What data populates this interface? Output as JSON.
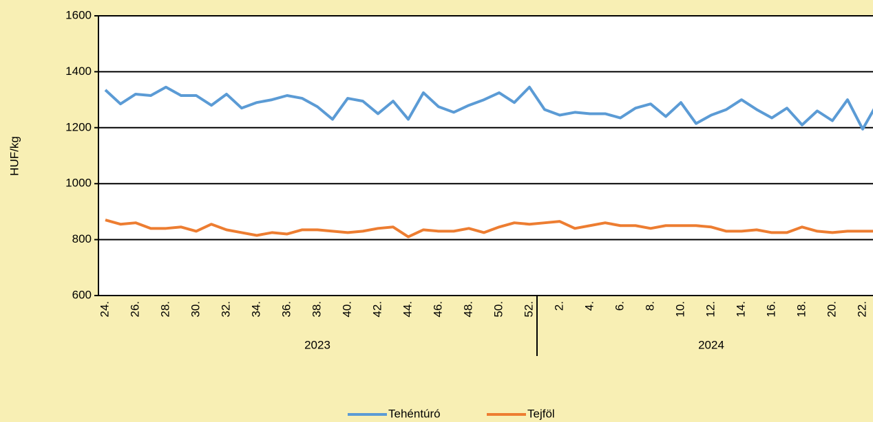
{
  "chart_data": {
    "type": "line",
    "y_label": "HUF/kg",
    "category_groups": [
      {
        "name": "2023",
        "categories": [
          "24.",
          null,
          "26.",
          null,
          "28.",
          null,
          "30.",
          null,
          "32.",
          null,
          "34.",
          null,
          "36.",
          null,
          "38.",
          null,
          "40.",
          null,
          "42.",
          null,
          "44.",
          null,
          "46.",
          null,
          "48.",
          null,
          "50.",
          null,
          "52."
        ]
      },
      {
        "name": "2024",
        "categories": [
          null,
          "2.",
          null,
          "4.",
          null,
          "6.",
          null,
          "8.",
          null,
          "10.",
          null,
          "12.",
          null,
          "14.",
          null,
          "16.",
          null,
          "18.",
          null,
          "20.",
          null,
          "22.",
          null
        ]
      }
    ],
    "series": [
      {
        "name": "Tehéntúró",
        "color": "#5b9bd5",
        "values": [
          1335,
          1285,
          1320,
          1315,
          1345,
          1315,
          1315,
          1280,
          1320,
          1270,
          1290,
          1300,
          1315,
          1305,
          1275,
          1230,
          1305,
          1295,
          1250,
          1295,
          1230,
          1325,
          1275,
          1255,
          1280,
          1300,
          1325,
          1290,
          1345,
          1265,
          1245,
          1255,
          1250,
          1250,
          1235,
          1270,
          1285,
          1240,
          1290,
          1215,
          1245,
          1265,
          1300,
          1265,
          1235,
          1270,
          1210,
          1260,
          1225,
          1300,
          1195,
          1290
        ]
      },
      {
        "name": "Tejföl",
        "color": "#ed7d31",
        "values": [
          870,
          855,
          860,
          840,
          840,
          845,
          830,
          855,
          835,
          825,
          815,
          825,
          820,
          835,
          835,
          830,
          825,
          830,
          840,
          845,
          810,
          835,
          830,
          830,
          840,
          825,
          845,
          860,
          855,
          860,
          865,
          840,
          850,
          860,
          850,
          850,
          840,
          850,
          850,
          850,
          845,
          830,
          830,
          835,
          825,
          825,
          845,
          830,
          825,
          830,
          830,
          830
        ]
      }
    ],
    "ylim": [
      600,
      1600
    ],
    "yticks": [
      600,
      800,
      1000,
      1200,
      1400,
      1600
    ],
    "grid": true,
    "legend": "bottom"
  }
}
